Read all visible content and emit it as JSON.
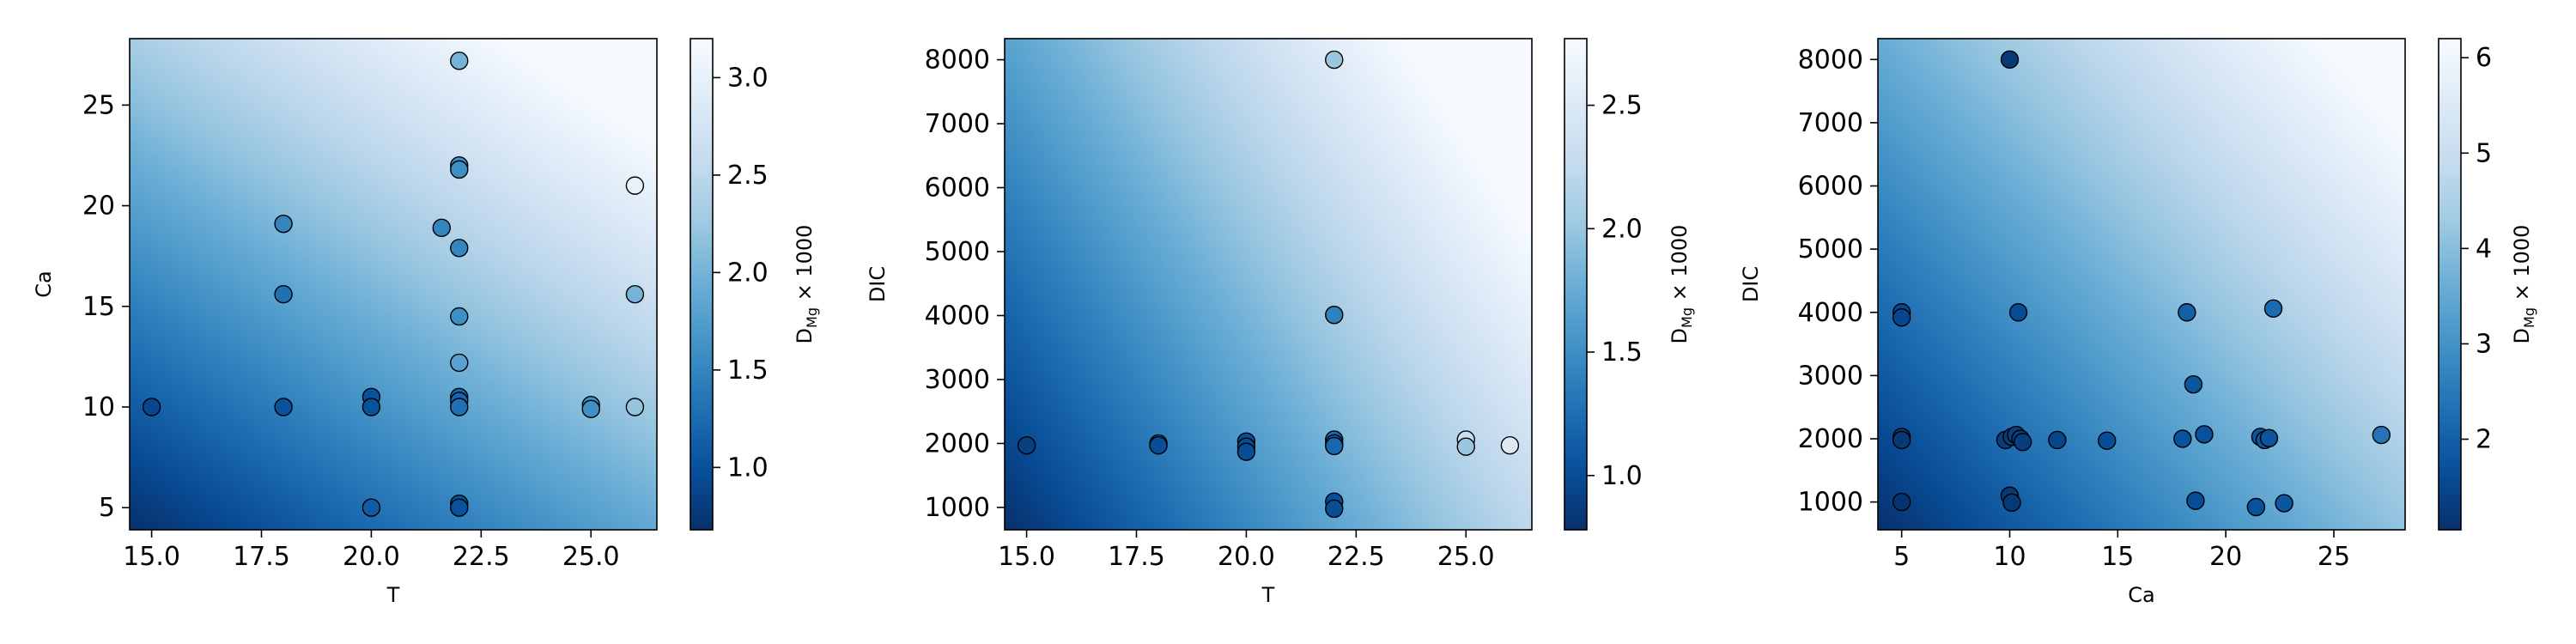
{
  "colors": {
    "cmap_stops": [
      "#08306b",
      "#08519c",
      "#2171b5",
      "#4292c6",
      "#6baed6",
      "#9ecae1",
      "#c6dbef",
      "#deebf7",
      "#f7fbff"
    ],
    "frame": "#000000",
    "marker_edge": "#000000"
  },
  "chart_data": [
    {
      "type": "scatter",
      "subtype": "scatter-over-heatmap",
      "xlabel": "T",
      "ylabel": "Ca",
      "xlim": [
        14.5,
        26.5
      ],
      "ylim": [
        3.9,
        28.3
      ],
      "xticks": [
        15.0,
        17.5,
        20.0,
        22.5,
        25.0
      ],
      "xtick_labels": [
        "15.0",
        "17.5",
        "20.0",
        "22.5",
        "25.0"
      ],
      "yticks": [
        5,
        10,
        15,
        20,
        25
      ],
      "ytick_labels": [
        "5",
        "10",
        "15",
        "20",
        "25"
      ],
      "colorbar_label_main": "D",
      "colorbar_label_sub": "Mg",
      "colorbar_label_tail": " × 1000",
      "clim": [
        0.68,
        3.2
      ],
      "cticks": [
        1.0,
        1.5,
        2.0,
        2.5,
        3.0
      ],
      "ctick_labels": [
        "1.0",
        "1.5",
        "2.0",
        "2.5",
        "3.0"
      ],
      "gradient": {
        "x_weight": 0.42,
        "y_weight": 0.58,
        "min_value": 0.68,
        "max_value": 3.2
      },
      "points": [
        {
          "x": 15.0,
          "y": 10.0,
          "v": 0.9
        },
        {
          "x": 18.0,
          "y": 19.1,
          "v": 1.5
        },
        {
          "x": 18.0,
          "y": 15.6,
          "v": 1.3
        },
        {
          "x": 18.0,
          "y": 10.0,
          "v": 1.0
        },
        {
          "x": 20.0,
          "y": 10.5,
          "v": 1.0
        },
        {
          "x": 20.0,
          "y": 10.0,
          "v": 1.0
        },
        {
          "x": 20.0,
          "y": 5.0,
          "v": 1.1
        },
        {
          "x": 21.6,
          "y": 18.9,
          "v": 1.5
        },
        {
          "x": 22.0,
          "y": 27.2,
          "v": 2.0
        },
        {
          "x": 22.0,
          "y": 22.0,
          "v": 1.6
        },
        {
          "x": 22.0,
          "y": 21.8,
          "v": 1.6
        },
        {
          "x": 22.0,
          "y": 17.9,
          "v": 1.5
        },
        {
          "x": 22.0,
          "y": 14.5,
          "v": 1.6
        },
        {
          "x": 22.0,
          "y": 12.2,
          "v": 1.8
        },
        {
          "x": 22.0,
          "y": 10.5,
          "v": 1.2
        },
        {
          "x": 22.0,
          "y": 10.3,
          "v": 1.2
        },
        {
          "x": 22.0,
          "y": 10.0,
          "v": 1.3
        },
        {
          "x": 22.0,
          "y": 5.2,
          "v": 1.0
        },
        {
          "x": 22.0,
          "y": 5.0,
          "v": 1.0
        },
        {
          "x": 25.0,
          "y": 10.1,
          "v": 1.6
        },
        {
          "x": 25.0,
          "y": 9.9,
          "v": 1.6
        },
        {
          "x": 26.0,
          "y": 21.0,
          "v": 3.0
        },
        {
          "x": 26.0,
          "y": 15.6,
          "v": 2.0
        },
        {
          "x": 26.0,
          "y": 10.0,
          "v": 2.2
        }
      ]
    },
    {
      "type": "scatter",
      "subtype": "scatter-over-heatmap",
      "xlabel": "T",
      "ylabel": "DIC",
      "xlim": [
        14.5,
        26.5
      ],
      "ylim": [
        650,
        8330
      ],
      "xticks": [
        15.0,
        17.5,
        20.0,
        22.5,
        25.0
      ],
      "xtick_labels": [
        "15.0",
        "17.5",
        "20.0",
        "22.5",
        "25.0"
      ],
      "yticks": [
        1000,
        2000,
        3000,
        4000,
        5000,
        6000,
        7000,
        8000
      ],
      "ytick_labels": [
        "1000",
        "2000",
        "3000",
        "4000",
        "5000",
        "6000",
        "7000",
        "8000"
      ],
      "colorbar_label_main": "D",
      "colorbar_label_sub": "Mg",
      "colorbar_label_tail": " × 1000",
      "clim": [
        0.78,
        2.77
      ],
      "cticks": [
        1.0,
        1.5,
        2.0,
        2.5
      ],
      "ctick_labels": [
        "1.0",
        "1.5",
        "2.0",
        "2.5"
      ],
      "gradient": {
        "x_weight": 0.62,
        "y_weight": 0.38,
        "min_value": 0.78,
        "max_value": 2.77
      },
      "points": [
        {
          "x": 15.0,
          "y": 1970,
          "v": 0.9
        },
        {
          "x": 18.0,
          "y": 2000,
          "v": 1.0
        },
        {
          "x": 18.0,
          "y": 1970,
          "v": 1.0
        },
        {
          "x": 20.0,
          "y": 2030,
          "v": 1.0
        },
        {
          "x": 20.0,
          "y": 1950,
          "v": 1.0
        },
        {
          "x": 20.0,
          "y": 1870,
          "v": 1.0
        },
        {
          "x": 22.0,
          "y": 8000,
          "v": 2.0
        },
        {
          "x": 22.0,
          "y": 4010,
          "v": 1.4
        },
        {
          "x": 22.0,
          "y": 2060,
          "v": 1.2
        },
        {
          "x": 22.0,
          "y": 2000,
          "v": 1.2
        },
        {
          "x": 22.0,
          "y": 1960,
          "v": 1.2
        },
        {
          "x": 22.0,
          "y": 1090,
          "v": 1.0
        },
        {
          "x": 22.0,
          "y": 980,
          "v": 1.0
        },
        {
          "x": 25.0,
          "y": 2060,
          "v": 2.3
        },
        {
          "x": 25.0,
          "y": 1950,
          "v": 2.0
        },
        {
          "x": 26.0,
          "y": 1970,
          "v": 2.5
        }
      ]
    },
    {
      "type": "scatter",
      "subtype": "scatter-over-heatmap",
      "xlabel": "Ca",
      "ylabel": "DIC",
      "xlim": [
        3.9,
        28.3
      ],
      "ylim": [
        560,
        8330
      ],
      "xticks": [
        5,
        10,
        15,
        20,
        25
      ],
      "xtick_labels": [
        "5",
        "10",
        "15",
        "20",
        "25"
      ],
      "yticks": [
        1000,
        2000,
        3000,
        4000,
        5000,
        6000,
        7000,
        8000
      ],
      "ytick_labels": [
        "1000",
        "2000",
        "3000",
        "4000",
        "5000",
        "6000",
        "7000",
        "8000"
      ],
      "colorbar_label_main": "D",
      "colorbar_label_sub": "Mg",
      "colorbar_label_tail": " × 1000",
      "clim": [
        1.05,
        6.2
      ],
      "cticks": [
        2,
        3,
        4,
        5,
        6
      ],
      "ctick_labels": [
        "2",
        "3",
        "4",
        "5",
        "6"
      ],
      "gradient": {
        "x_weight": 0.55,
        "y_weight": 0.45,
        "min_value": 1.05,
        "max_value": 6.2
      },
      "points": [
        {
          "x": 5.0,
          "y": 4000,
          "v": 1.5
        },
        {
          "x": 5.0,
          "y": 3920,
          "v": 1.5
        },
        {
          "x": 5.0,
          "y": 2030,
          "v": 1.2
        },
        {
          "x": 5.0,
          "y": 1980,
          "v": 1.2
        },
        {
          "x": 5.0,
          "y": 1000,
          "v": 1.1
        },
        {
          "x": 10.0,
          "y": 8000,
          "v": 1.2
        },
        {
          "x": 10.4,
          "y": 4000,
          "v": 1.6
        },
        {
          "x": 9.8,
          "y": 1980,
          "v": 1.3
        },
        {
          "x": 10.1,
          "y": 2030,
          "v": 1.3
        },
        {
          "x": 10.3,
          "y": 2060,
          "v": 1.3
        },
        {
          "x": 10.5,
          "y": 2000,
          "v": 1.3
        },
        {
          "x": 10.6,
          "y": 1950,
          "v": 1.3
        },
        {
          "x": 10.0,
          "y": 1100,
          "v": 1.2
        },
        {
          "x": 10.1,
          "y": 990,
          "v": 1.2
        },
        {
          "x": 12.2,
          "y": 1980,
          "v": 1.5
        },
        {
          "x": 14.5,
          "y": 1970,
          "v": 1.6
        },
        {
          "x": 18.0,
          "y": 2000,
          "v": 1.7
        },
        {
          "x": 18.2,
          "y": 4000,
          "v": 2.0
        },
        {
          "x": 18.5,
          "y": 2860,
          "v": 1.8
        },
        {
          "x": 19.0,
          "y": 2070,
          "v": 1.7
        },
        {
          "x": 18.6,
          "y": 1020,
          "v": 1.6
        },
        {
          "x": 21.4,
          "y": 920,
          "v": 1.7
        },
        {
          "x": 21.6,
          "y": 2030,
          "v": 1.8
        },
        {
          "x": 21.8,
          "y": 1980,
          "v": 1.8
        },
        {
          "x": 22.0,
          "y": 2010,
          "v": 1.8
        },
        {
          "x": 22.2,
          "y": 4060,
          "v": 2.2
        },
        {
          "x": 22.7,
          "y": 980,
          "v": 1.8
        },
        {
          "x": 27.2,
          "y": 2060,
          "v": 2.4
        }
      ]
    }
  ]
}
